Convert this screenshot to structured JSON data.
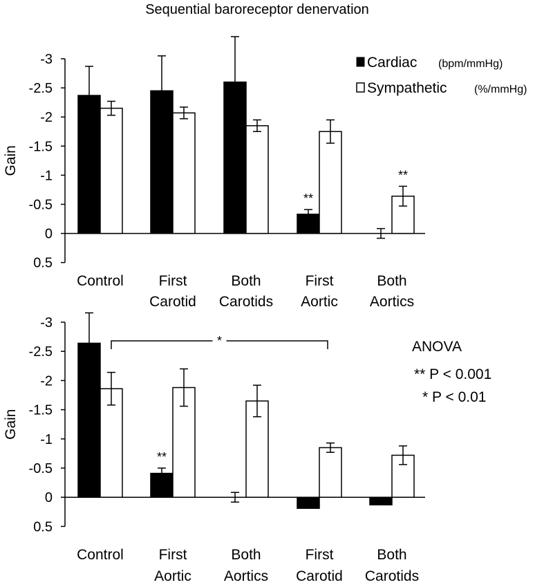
{
  "title": "Sequential baroreceptor denervation",
  "colors": {
    "cardiac": "#000000",
    "sympathetic": "#ffffff",
    "stroke": "#000000"
  },
  "legend": {
    "cardiac": {
      "label": "Cardiac",
      "unit": "(bpm/mmHg)"
    },
    "sympathetic": {
      "label": "Sympathetic",
      "unit": "(%/mmHg)"
    }
  },
  "anova": {
    "title": "ANOVA",
    "line1": "** P < 0.001",
    "line2": "* P < 0.01"
  },
  "chart_data": [
    {
      "type": "bar",
      "ylabel": "Gain",
      "ylim": [
        -3,
        0.5
      ],
      "y_reversed": true,
      "yticks": [
        "-3",
        "-2.5",
        "-2",
        "-1.5",
        "-1",
        "-0.5",
        "0",
        "0.5"
      ],
      "categories": [
        [
          "Control"
        ],
        [
          "First",
          "Carotid"
        ],
        [
          "Both",
          "Carotids"
        ],
        [
          "First",
          "Aortic"
        ],
        [
          "Both",
          "Aortics"
        ]
      ],
      "series": [
        {
          "name": "Cardiac",
          "values": [
            -2.37,
            -2.45,
            -2.6,
            -0.33,
            0.0
          ],
          "errors": [
            0.5,
            0.6,
            0.78,
            0.08,
            0.0
          ]
        },
        {
          "name": "Sympathetic",
          "values": [
            -2.15,
            -2.07,
            -1.85,
            -1.75,
            -0.64
          ],
          "errors": [
            0.12,
            0.1,
            0.1,
            0.2,
            0.17
          ]
        }
      ],
      "annotations": [
        {
          "text": "**",
          "category": 3,
          "series": 0
        },
        {
          "text": "**",
          "category": 4,
          "series": 1
        }
      ]
    },
    {
      "type": "bar",
      "ylabel": "Gain",
      "ylim": [
        -3,
        0.5
      ],
      "y_reversed": true,
      "yticks": [
        "-3",
        "-2.5",
        "-2",
        "-1.5",
        "-1",
        "-0.5",
        "0",
        "0.5"
      ],
      "categories": [
        [
          "Control"
        ],
        [
          "First",
          "Aortic"
        ],
        [
          "Both",
          "Aortics"
        ],
        [
          "First",
          "Carotid"
        ],
        [
          "Both",
          "Carotids"
        ]
      ],
      "series": [
        {
          "name": "Cardiac",
          "values": [
            -2.64,
            -0.41,
            0.0,
            0.19,
            0.13
          ],
          "errors": [
            0.52,
            0.09,
            0.0,
            0.0,
            0.0
          ]
        },
        {
          "name": "Sympathetic",
          "values": [
            -1.86,
            -1.88,
            -1.65,
            -0.85,
            -0.72
          ],
          "errors": [
            0.28,
            0.32,
            0.27,
            0.08,
            0.16
          ]
        }
      ],
      "annotations": [
        {
          "text": "**",
          "category": 1,
          "series": 0
        }
      ],
      "bracket": {
        "text": "*",
        "from_category": 0,
        "to_category": 3
      }
    }
  ]
}
